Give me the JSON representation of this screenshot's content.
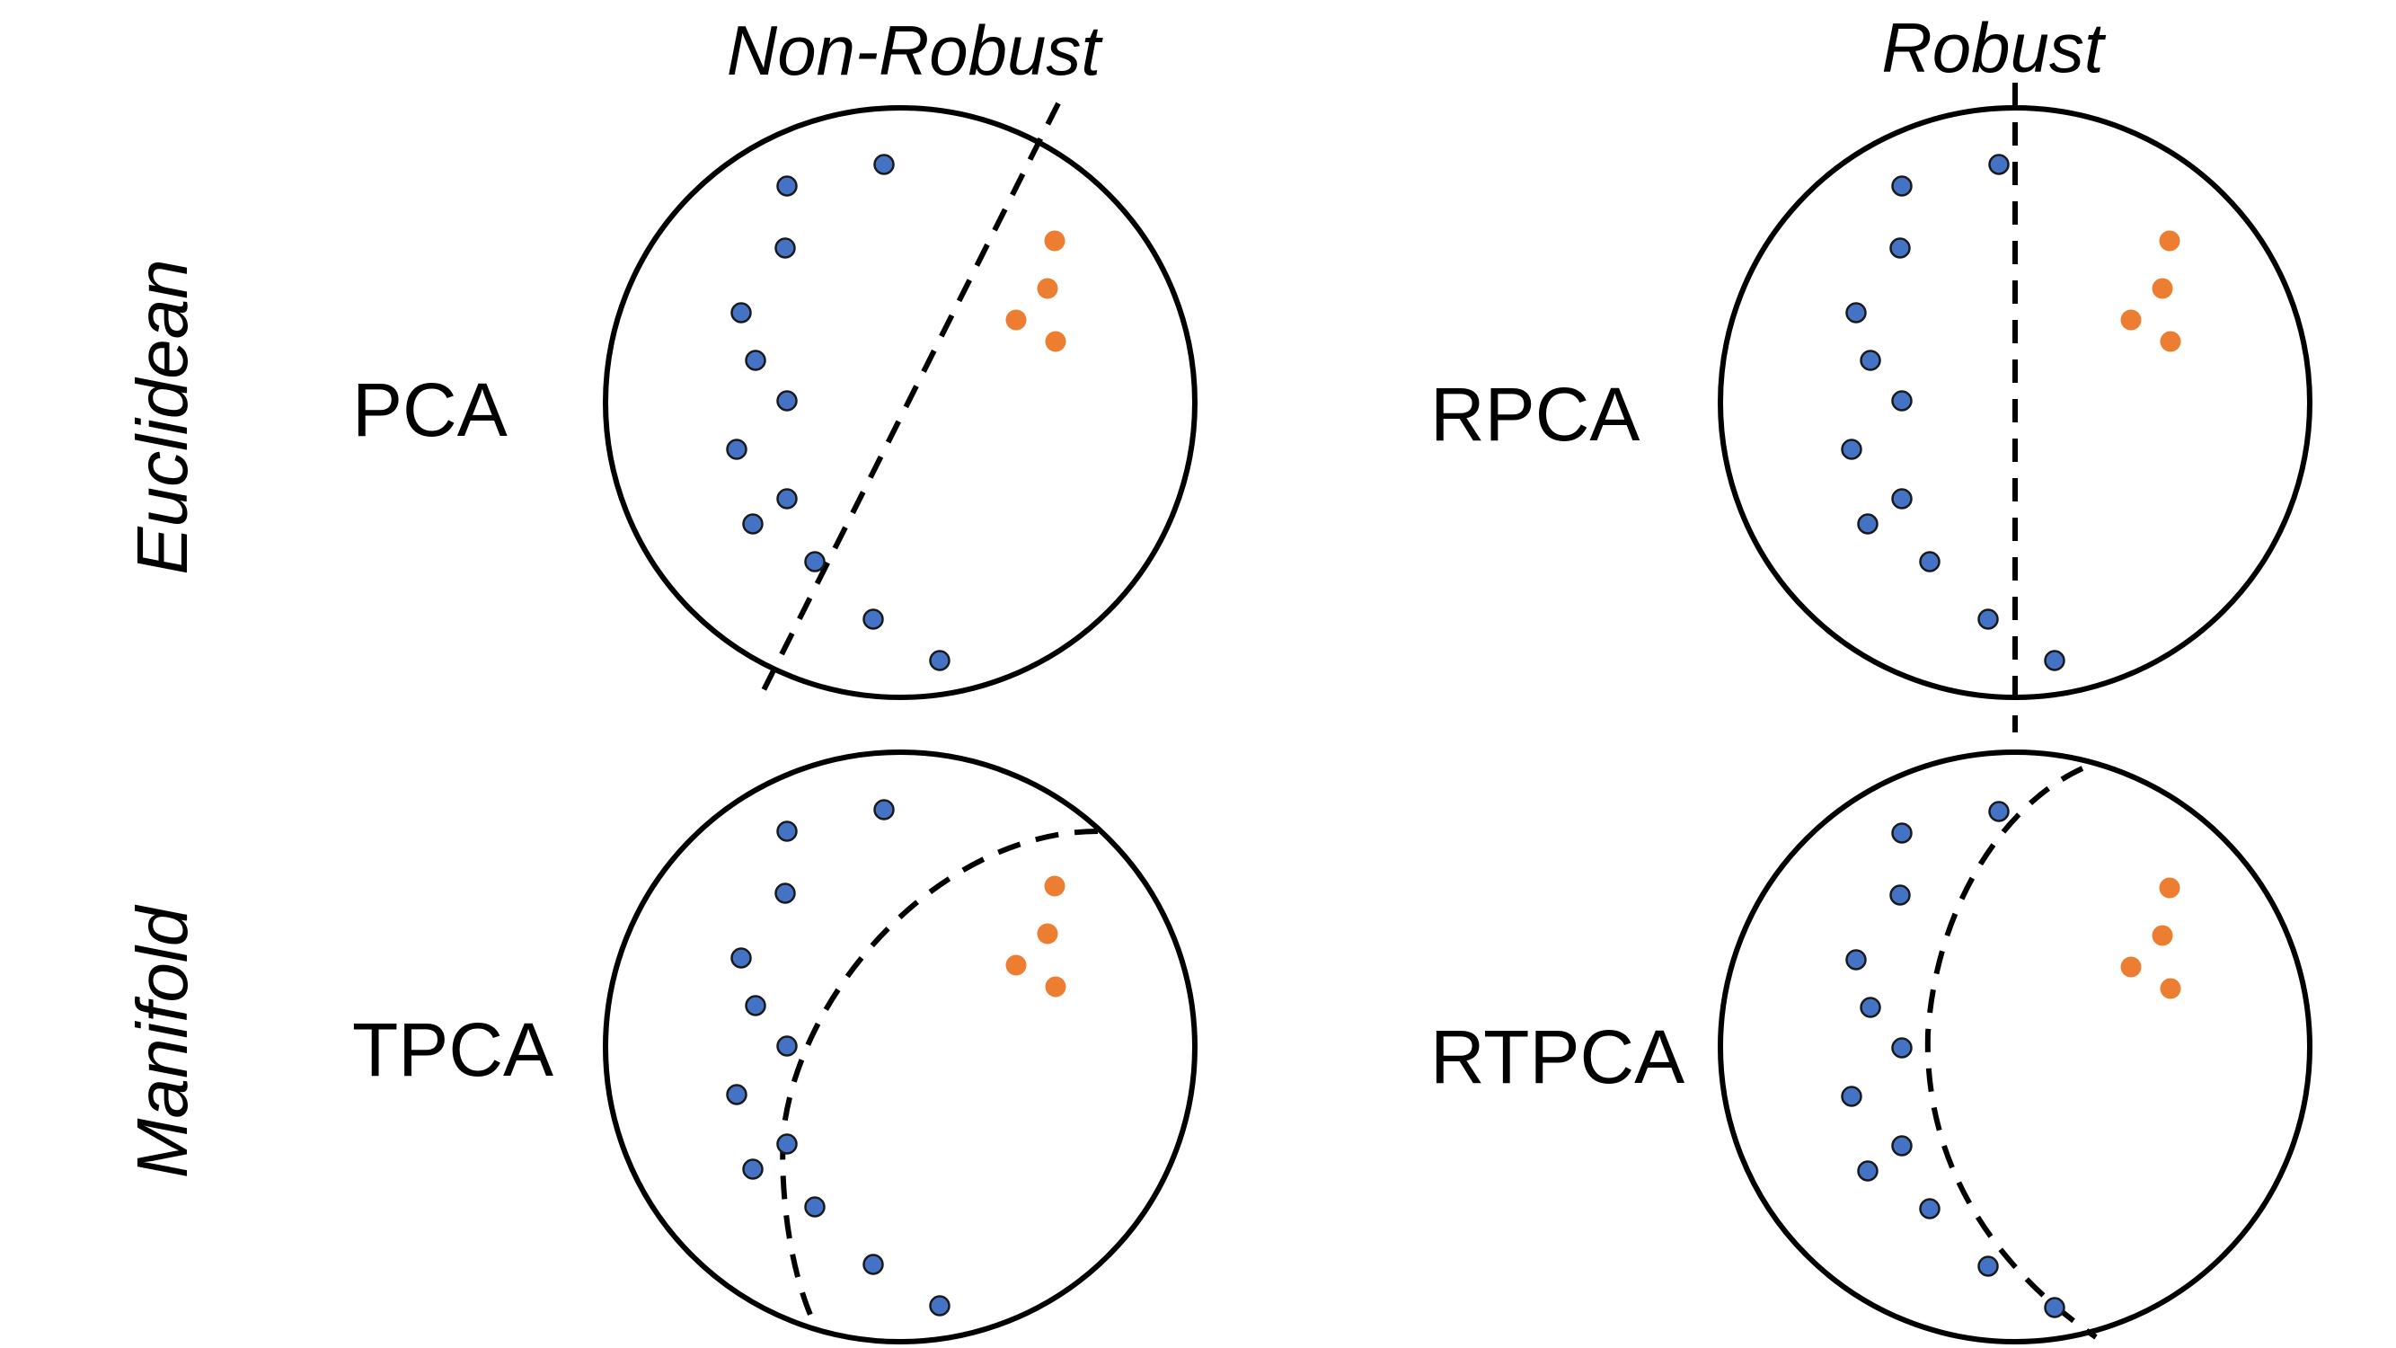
{
  "column_titles": [
    "Non-Robust",
    "Robust"
  ],
  "row_titles": [
    "Euclidean",
    "Manifold"
  ],
  "colors": {
    "inlier": "#4472C4",
    "outlier": "#ED7D31",
    "line": "#000000"
  },
  "panels": [
    {
      "id": "pca",
      "label": "PCA",
      "column": "Non-Robust",
      "row": "Euclidean",
      "divider": "straight line (dashed)"
    },
    {
      "id": "rpca",
      "label": "RPCA",
      "column": "Robust",
      "row": "Euclidean",
      "divider": "straight line (dashed)"
    },
    {
      "id": "tpca",
      "label": "TPCA",
      "column": "Non-Robust",
      "row": "Manifold",
      "divider": "geodesic arc (dashed)"
    },
    {
      "id": "rtpca",
      "label": "RTPCA",
      "column": "Robust",
      "row": "Manifold",
      "divider": "geodesic arc (dashed)"
    }
  ]
}
